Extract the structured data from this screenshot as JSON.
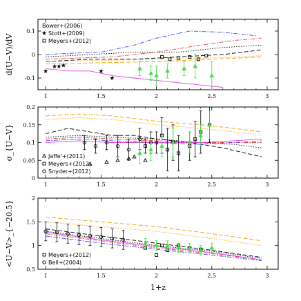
{
  "chart_data": [
    {
      "type": "line",
      "ylabel": "d(U−V)/dV",
      "ylim": [
        -0.15,
        0.15
      ],
      "yticks": [
        -0.1,
        0,
        0.1
      ],
      "xlim": [
        0.93,
        3.1
      ],
      "xticks": [
        1,
        1.5,
        2,
        2.5,
        3
      ],
      "grid": false,
      "legend_position": "top-left",
      "legend": [
        {
          "label": "Bower+(2006)",
          "color": "#e040e0",
          "marker": "line"
        },
        {
          "label": "Stott+(2009)",
          "color": "#000000",
          "marker": "star"
        },
        {
          "label": "Meyers+(2012)",
          "color": "#000000",
          "marker": "square"
        }
      ],
      "model_lines": [
        {
          "color": "#e040e0",
          "dash": "solid",
          "x": [
            1.0,
            1.2,
            1.4,
            1.6,
            1.8,
            2.0,
            2.2,
            2.4,
            2.6
          ],
          "y": [
            -0.06,
            -0.07,
            -0.07,
            -0.09,
            -0.1,
            -0.11,
            -0.12,
            -0.13,
            -0.14
          ]
        },
        {
          "color": "#4040ff",
          "dash": "dashdot",
          "x": [
            1.0,
            1.2,
            1.5,
            1.8,
            2.0,
            2.3,
            2.6,
            2.9
          ],
          "y": [
            0.0,
            0.005,
            0.01,
            0.04,
            0.07,
            0.1,
            0.095,
            0.08
          ]
        },
        {
          "color": "#e04040",
          "dash": "dashdot",
          "x": [
            1.0,
            1.3,
            1.6,
            2.0,
            2.4,
            2.7,
            2.95
          ],
          "y": [
            -0.02,
            -0.015,
            -0.01,
            0.01,
            0.04,
            0.06,
            0.07
          ]
        },
        {
          "color": "#000000",
          "dash": "dot",
          "x": [
            1.0,
            1.4,
            1.8,
            2.2,
            2.6,
            2.95
          ],
          "y": [
            -0.01,
            0.0,
            0.01,
            0.01,
            0.03,
            0.04
          ]
        },
        {
          "color": "#000000",
          "dash": "dash",
          "x": [
            1.0,
            1.4,
            1.8,
            2.2,
            2.6,
            2.95
          ],
          "y": [
            -0.03,
            -0.02,
            -0.02,
            -0.01,
            0.0,
            0.02
          ]
        },
        {
          "color": "#f0a000",
          "dash": "dash",
          "x": [
            1.0,
            1.5,
            2.0,
            2.5,
            2.95
          ],
          "y": [
            -0.04,
            -0.035,
            -0.03,
            -0.02,
            -0.01
          ]
        },
        {
          "color": "#f0a000",
          "dash": "dot",
          "x": [
            1.0,
            1.5,
            2.0,
            2.5,
            2.95
          ],
          "y": [
            -0.03,
            -0.025,
            -0.02,
            -0.015,
            -0.005
          ]
        }
      ],
      "points": [
        {
          "series": "Stott+(2009)",
          "marker": "star",
          "color": "#000000",
          "x": [
            1.0,
            1.08,
            1.12,
            1.16,
            1.5,
            1.6
          ],
          "y": [
            -0.07,
            -0.05,
            -0.05,
            -0.045,
            -0.07,
            -0.1
          ]
        },
        {
          "series": "Meyers+(2012)",
          "marker": "square",
          "color": "#000000",
          "x": [
            2.05,
            2.12,
            2.2,
            2.3,
            2.38,
            2.45
          ],
          "y": [
            -0.01,
            -0.02,
            -0.015,
            -0.01,
            -0.02,
            -0.005
          ]
        },
        {
          "series": "simulation",
          "marker": "triangle",
          "color": "#40e040",
          "err": [
            0.03,
            0.03,
            0.04,
            0.03,
            0.03,
            0.05,
            0.06
          ],
          "x": [
            1.85,
            1.95,
            2.0,
            2.1,
            2.25,
            2.35,
            2.5
          ],
          "y": [
            -0.06,
            -0.08,
            -0.09,
            -0.07,
            -0.06,
            -0.05,
            -0.09
          ]
        }
      ]
    },
    {
      "type": "line",
      "ylabel": "σ_{U−V}",
      "ylim": [
        0,
        0.2
      ],
      "yticks": [
        0,
        0.05,
        0.1,
        0.15,
        0.2
      ],
      "xlim": [
        0.93,
        3.1
      ],
      "xticks": [
        1,
        1.5,
        2,
        2.5,
        3
      ],
      "grid": false,
      "legend_position": "bottom-left",
      "legend": [
        {
          "label": "Jaffe'+(2011)",
          "color": "#000000",
          "marker": "triangle-open"
        },
        {
          "label": "Meyers+(2012)",
          "color": "#000000",
          "marker": "square"
        },
        {
          "label": "Snyder+(2012)",
          "color": "#000000",
          "marker": "circle-open"
        }
      ],
      "model_lines": [
        {
          "color": "#f0a000",
          "dash": "dash",
          "x": [
            1.0,
            1.3,
            1.6,
            2.0,
            2.4,
            2.7,
            2.95
          ],
          "y": [
            0.175,
            0.18,
            0.175,
            0.16,
            0.15,
            0.14,
            0.13
          ]
        },
        {
          "color": "#f0a000",
          "dash": "dot",
          "x": [
            1.0,
            1.3,
            1.6,
            2.0,
            2.4,
            2.7,
            2.95
          ],
          "y": [
            0.165,
            0.17,
            0.165,
            0.15,
            0.14,
            0.13,
            0.12
          ]
        },
        {
          "color": "#000000",
          "dash": "dash",
          "x": [
            1.0,
            1.2,
            1.4,
            1.6,
            1.8,
            2.0,
            2.3,
            2.6,
            2.95
          ],
          "y": [
            0.125,
            0.14,
            0.13,
            0.12,
            0.12,
            0.11,
            0.1,
            0.085,
            0.06
          ]
        },
        {
          "color": "#000000",
          "dash": "dot",
          "x": [
            1.0,
            1.3,
            1.6,
            2.0,
            2.4,
            2.7,
            2.95
          ],
          "y": [
            0.115,
            0.12,
            0.115,
            0.11,
            0.1,
            0.095,
            0.085
          ]
        },
        {
          "color": "#e04040",
          "dash": "dashdot",
          "x": [
            1.0,
            1.3,
            1.6,
            2.0,
            2.4,
            2.7,
            2.95
          ],
          "y": [
            0.11,
            0.115,
            0.11,
            0.105,
            0.1,
            0.1,
            0.1
          ]
        },
        {
          "color": "#4040ff",
          "dash": "dashdot",
          "x": [
            1.0,
            1.3,
            1.6,
            2.0,
            2.4,
            2.7,
            2.95
          ],
          "y": [
            0.105,
            0.11,
            0.105,
            0.1,
            0.095,
            0.1,
            0.105
          ]
        },
        {
          "color": "#e040e0",
          "dash": "solid",
          "x": [
            1.0,
            1.3,
            1.6,
            2.0,
            2.4,
            2.7,
            2.95
          ],
          "y": [
            0.1,
            0.105,
            0.1,
            0.1,
            0.1,
            0.105,
            0.11
          ]
        }
      ],
      "points": [
        {
          "series": "Jaffe'+(2011)",
          "marker": "triangle-open",
          "color": "#000000",
          "x": [
            1.4,
            1.55,
            1.65,
            1.75,
            1.8,
            1.9
          ],
          "y": [
            0.04,
            0.045,
            0.05,
            0.055,
            0.06,
            0.05
          ]
        },
        {
          "series": "Meyers+(2012)",
          "marker": "square",
          "color": "#000000",
          "err": [
            0.02,
            0.03,
            0.05,
            0.06,
            0.05,
            0.05,
            0.04,
            0.05,
            0.06,
            0.05
          ],
          "x": [
            1.9,
            2.0,
            2.05,
            2.1,
            2.15,
            2.2,
            2.3,
            2.35,
            2.4,
            2.48
          ],
          "y": [
            0.09,
            0.1,
            0.12,
            0.08,
            0.1,
            0.07,
            0.09,
            0.11,
            0.13,
            0.15
          ]
        },
        {
          "series": "Snyder+(2012)",
          "marker": "circle-open",
          "color": "#000000",
          "err": [
            0.02,
            0.02,
            0.02,
            0.03,
            0.03,
            0.03,
            0.03
          ],
          "x": [
            1.35,
            1.45,
            1.55,
            1.65,
            1.75,
            1.85,
            1.95
          ],
          "y": [
            0.1,
            0.09,
            0.1,
            0.09,
            0.08,
            0.11,
            0.1
          ]
        },
        {
          "series": "simulation",
          "marker": "triangle",
          "color": "#40e040",
          "err": [
            0.03,
            0.03,
            0.03,
            0.04,
            0.03,
            0.03,
            0.04
          ],
          "x": [
            1.85,
            1.95,
            2.05,
            2.15,
            2.3,
            2.4,
            2.48
          ],
          "y": [
            0.07,
            0.08,
            0.09,
            0.1,
            0.1,
            0.12,
            0.15
          ]
        }
      ]
    },
    {
      "type": "line",
      "ylabel": "<U−V>_{−20.5}",
      "xlabel": "1+z",
      "ylim": [
        0.5,
        2.0
      ],
      "yticks": [
        0.5,
        1,
        1.5,
        2
      ],
      "xlim": [
        0.93,
        3.1
      ],
      "xticks": [
        1,
        1.5,
        2,
        2.5,
        3
      ],
      "grid": false,
      "legend_position": "bottom-left",
      "legend": [
        {
          "label": "Meyers+(2012)",
          "color": "#000000",
          "marker": "square"
        },
        {
          "label": "Bell+(2004)",
          "color": "#000000",
          "marker": "circle-open"
        }
      ],
      "model_lines": [
        {
          "color": "#f0a000",
          "dash": "dash",
          "x": [
            1.0,
            1.5,
            2.0,
            2.5,
            2.95
          ],
          "y": [
            1.6,
            1.5,
            1.4,
            1.25,
            1.1
          ]
        },
        {
          "color": "#f0a000",
          "dash": "dot",
          "x": [
            1.0,
            1.5,
            2.0,
            2.5,
            2.95
          ],
          "y": [
            1.5,
            1.4,
            1.3,
            1.15,
            1.0
          ]
        },
        {
          "color": "#000000",
          "dash": "dash",
          "x": [
            1.0,
            1.5,
            2.0,
            2.5,
            2.95
          ],
          "y": [
            1.35,
            1.2,
            1.05,
            0.9,
            0.75
          ]
        },
        {
          "color": "#000000",
          "dash": "dot",
          "x": [
            1.0,
            1.5,
            2.0,
            2.5,
            2.95
          ],
          "y": [
            1.3,
            1.15,
            1.0,
            0.88,
            0.73
          ]
        },
        {
          "color": "#e04040",
          "dash": "dashdot",
          "x": [
            1.0,
            1.5,
            2.0,
            2.5,
            2.95
          ],
          "y": [
            1.25,
            1.1,
            0.95,
            0.83,
            0.7
          ]
        },
        {
          "color": "#4040ff",
          "dash": "dashdot",
          "x": [
            1.0,
            1.5,
            2.0,
            2.5,
            2.95
          ],
          "y": [
            1.2,
            1.05,
            0.92,
            0.8,
            0.68
          ]
        },
        {
          "color": "#e040e0",
          "dash": "solid",
          "x": [
            1.0,
            1.5,
            2.0,
            2.5,
            2.95
          ],
          "y": [
            1.28,
            1.12,
            0.98,
            0.85,
            0.7
          ]
        }
      ],
      "points": [
        {
          "series": "Bell+(2004)",
          "marker": "circle-open",
          "color": "#000000",
          "err": [
            0.2,
            0.2,
            0.2,
            0.2,
            0.2,
            0.2,
            0.2,
            0.2
          ],
          "x": [
            1.0,
            1.1,
            1.2,
            1.3,
            1.4,
            1.5,
            1.6,
            1.7
          ],
          "y": [
            1.3,
            1.28,
            1.25,
            1.22,
            1.2,
            1.18,
            1.15,
            1.12
          ]
        },
        {
          "series": "Meyers+(2012)",
          "marker": "square",
          "color": "#000000",
          "x": [
            1.9,
            2.0,
            2.05,
            2.1,
            2.2,
            2.3,
            2.4
          ],
          "y": [
            0.95,
            0.8,
            1.0,
            0.9,
            1.0,
            0.95,
            0.92
          ]
        },
        {
          "series": "simulation",
          "marker": "triangle",
          "color": "#40e040",
          "err": [
            0.1,
            0.1,
            0.1,
            0.1,
            0.1,
            0.1,
            0.1
          ],
          "x": [
            1.9,
            2.0,
            2.1,
            2.2,
            2.3,
            2.4,
            2.5
          ],
          "y": [
            1.05,
            1.0,
            1.0,
            0.95,
            0.95,
            0.9,
            0.95
          ]
        }
      ]
    }
  ]
}
